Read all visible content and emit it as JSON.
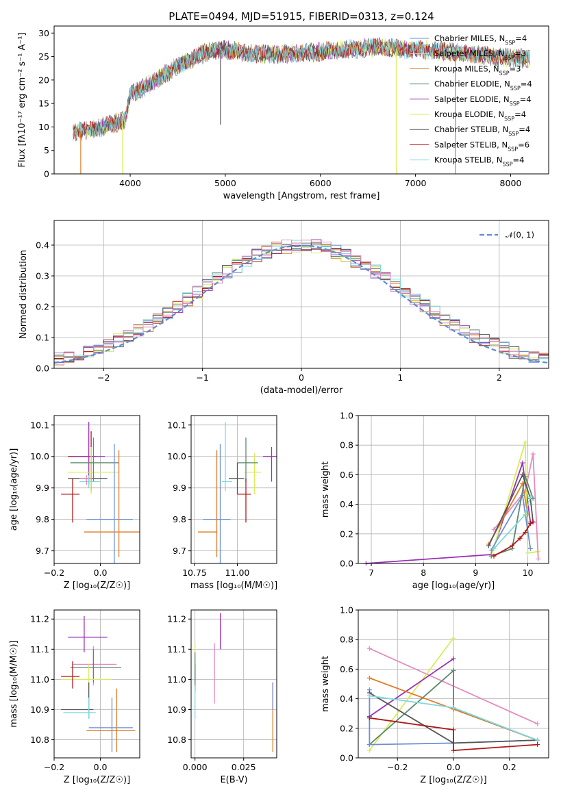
{
  "title": "PLATE=0494, MJD=51915, FIBERID=0313, z=0.124",
  "colors": {
    "chabrier_miles": "#6a8fd8",
    "salpeter_miles": "#e0e0e0",
    "kroupa_miles": "#e07b28",
    "chabrier_elodie": "#5a8a6a",
    "salpeter_elodie": "#9b30b5",
    "kroupa_elodie": "#d8ec5a",
    "chabrier_stelib": "#555555",
    "salpeter_stelib": "#b01818",
    "kroupa_stelib": "#7fd9e0",
    "pink": "#e58ac0",
    "normal": "#5b8ad9"
  },
  "chart_data": [
    {
      "type": "line",
      "name": "spectrum",
      "xlabel": "wavelength [Angstrom, rest frame]",
      "ylabel": "Flux [fλ10⁻¹⁷ erg cm⁻² s⁻¹ A⁻¹]",
      "xlim": [
        3200,
        8400
      ],
      "ylim": [
        0,
        31.5
      ],
      "xticks": [
        "4000",
        "5000",
        "6000",
        "7000",
        "8000"
      ],
      "yticks": [
        "0",
        "5",
        "10",
        "15",
        "20",
        "25",
        "30"
      ],
      "legend_position": "right",
      "legend": [
        "Chabrier MILES, N_SSP=4",
        "Salpeter MILES, N_SSP=3",
        "Kroupa MILES, N_SSP=3",
        "Chabrier ELODIE, N_SSP=4",
        "Salpeter ELODIE, N_SSP=4",
        "Kroupa ELODIE, N_SSP=4",
        "Chabrier STELIB, N_SSP=4",
        "Salpeter STELIB, N_SSP=6",
        "Kroupa STELIB, N_SSP=4"
      ],
      "continuum": {
        "x": [
          3400,
          3600,
          3800,
          3950,
          4000,
          4200,
          4500,
          4800,
          5000,
          5300,
          5600,
          6000,
          6300,
          6600,
          7000,
          7400,
          7800,
          8200
        ],
        "y": [
          9,
          9.5,
          10.5,
          11.5,
          17,
          19,
          23,
          26,
          26.5,
          25.5,
          25.5,
          26,
          26.5,
          27,
          26.5,
          26,
          25,
          24.5
        ]
      },
      "drops": [
        {
          "x": 3480,
          "color": "#e07b28"
        },
        {
          "x": 3920,
          "color": "#d8ec5a"
        },
        {
          "x": 6800,
          "color": "#d8ec5a"
        },
        {
          "x": 7420,
          "color": "#e07b28"
        },
        {
          "x": 4950,
          "color": "#555555",
          "to": 10.5
        }
      ]
    },
    {
      "type": "histogram",
      "name": "residuals",
      "xlabel": "(data-model)/error",
      "ylabel": "Normed distribution",
      "xlim": [
        -2.5,
        2.5
      ],
      "ylim": [
        0,
        0.48
      ],
      "xticks": [
        "−2",
        "−1",
        "0",
        "1",
        "2"
      ],
      "yticks": [
        "0.0",
        "0.1",
        "0.2",
        "0.3",
        "0.4"
      ],
      "legend": "𝒩(0, 1)",
      "legend_position": "top-right"
    },
    {
      "type": "errorbar",
      "name": "age_vs_Z",
      "xlabel": "Z [log₁₀(Z/Z☉)]",
      "ylabel": "age [log₁₀(age/yr)]",
      "xlim": [
        -0.2,
        0.17
      ],
      "ylim": [
        9.66,
        10.13
      ],
      "xticks": [
        "−0.2",
        "0.0"
      ],
      "yticks": [
        "9.7",
        "9.8",
        "9.9",
        "10.0",
        "10.1"
      ],
      "points": [
        {
          "x": -0.04,
          "xerr": [
            0.1,
            0.07
          ],
          "y": 9.93,
          "yerr": [
            0.04,
            0.05
          ],
          "color": "#555555"
        },
        {
          "x": -0.04,
          "xerr": [
            0.1,
            0.02
          ],
          "y": 10.0,
          "yerr": [
            0.08,
            0.08
          ],
          "color": "#b01818"
        },
        {
          "x": -0.05,
          "xerr": [
            0.07,
            0.07
          ],
          "y": 10.0,
          "yerr": [
            0.09,
            0.11
          ],
          "color": "#9b30b5"
        },
        {
          "x": -0.04,
          "xerr": [
            0.1,
            0.12
          ],
          "y": 9.95,
          "yerr": [
            0.07,
            0.08
          ],
          "color": "#d8ec5a"
        },
        {
          "x": -0.03,
          "xerr": [
            0.1,
            0.11
          ],
          "y": 9.98,
          "yerr": [
            0.06,
            0.08
          ],
          "color": "#5a8a6a"
        },
        {
          "x": -0.05,
          "xerr": [
            0.04,
            0.05
          ],
          "y": 9.92,
          "yerr": [
            0.02,
            0.02
          ],
          "color": "#7fd9e0"
        },
        {
          "x": -0.06,
          "xerr": [
            0.03,
            0.02
          ],
          "y": 9.93,
          "yerr": [
            0.02,
            0.01
          ],
          "color": "#e58ac0"
        },
        {
          "x": -0.12,
          "xerr": [
            0.05,
            0.03
          ],
          "y": 9.88,
          "yerr": [
            0.09,
            0.05
          ],
          "color": "#b01818"
        },
        {
          "x": 0.06,
          "xerr": [
            0.12,
            0.08
          ],
          "y": 9.8,
          "yerr": [
            0.14,
            0.24
          ],
          "color": "#6a8fd8"
        },
        {
          "x": 0.08,
          "xerr": [
            0.15,
            0.1
          ],
          "y": 9.76,
          "yerr": [
            0.08,
            0.26
          ],
          "color": "#e07b28"
        }
      ]
    },
    {
      "type": "errorbar",
      "name": "age_vs_mass",
      "xlabel": "mass [log₁₀(M/M☉)]",
      "ylabel": "",
      "xlim": [
        10.73,
        11.23
      ],
      "ylim": [
        9.66,
        10.13
      ],
      "xticks": [
        "10.75",
        "11.00"
      ],
      "yticks": [
        "9.7",
        "9.8",
        "9.9",
        "10.0",
        "10.1"
      ],
      "points": [
        {
          "x": 11.2,
          "xerr": [
            0.05,
            0.05
          ],
          "y": 10.0,
          "yerr": [
            0.08,
            0.03
          ],
          "color": "#9b30b5"
        },
        {
          "x": 11.1,
          "xerr": [
            0.06,
            0.04
          ],
          "y": 9.95,
          "yerr": [
            0.07,
            0.06
          ],
          "color": "#d8ec5a"
        },
        {
          "x": 11.05,
          "xerr": [
            0.05,
            0.07
          ],
          "y": 9.98,
          "yerr": [
            0.06,
            0.08
          ],
          "color": "#5a8a6a"
        },
        {
          "x": 11.0,
          "xerr": [
            0.05,
            0.04
          ],
          "y": 9.93,
          "yerr": [
            0.05,
            0.05
          ],
          "color": "#555555"
        },
        {
          "x": 10.93,
          "xerr": [
            0.02,
            0.04
          ],
          "y": 9.92,
          "yerr": [
            0.03,
            0.19
          ],
          "color": "#7fd9e0"
        },
        {
          "x": 11.05,
          "xerr": [
            0.05,
            0.03
          ],
          "y": 9.88,
          "yerr": [
            0.09,
            0.05
          ],
          "color": "#b01818"
        },
        {
          "x": 10.9,
          "xerr": [
            0.1,
            0.06
          ],
          "y": 9.8,
          "yerr": [
            0.14,
            0.24
          ],
          "color": "#6a8fd8"
        },
        {
          "x": 10.88,
          "xerr": [
            0.11,
            0.0
          ],
          "y": 9.76,
          "yerr": [
            0.08,
            0.26
          ],
          "color": "#e07b28"
        }
      ]
    },
    {
      "type": "line",
      "name": "mass_weight_vs_age",
      "xlabel": "age [log₁₀(age/yr)]",
      "ylabel": "mass weight",
      "xlim": [
        6.75,
        10.4
      ],
      "ylim": [
        0,
        1
      ],
      "xticks": [
        "7",
        "8",
        "9",
        "10"
      ],
      "yticks": [
        "0.0",
        "0.2",
        "0.4",
        "0.6",
        "0.8",
        "1.0"
      ],
      "series": [
        {
          "color": "#9b30b5",
          "x": [
            6.9,
            9.3,
            9.9,
            10.05
          ],
          "y": [
            0.0,
            0.06,
            0.68,
            0.28
          ]
        },
        {
          "color": "#d8ec5a",
          "x": [
            9.3,
            9.95,
            10.0,
            10.2
          ],
          "y": [
            0.05,
            0.82,
            0.07,
            0.08
          ]
        },
        {
          "color": "#e58ac0",
          "x": [
            9.35,
            9.95,
            10.1,
            10.2
          ],
          "y": [
            0.23,
            0.49,
            0.74,
            0.03
          ]
        },
        {
          "color": "#e07b28",
          "x": [
            9.25,
            9.9,
            10.0
          ],
          "y": [
            0.13,
            0.54,
            0.33
          ]
        },
        {
          "color": "#6a8fd8",
          "x": [
            9.3,
            9.9,
            10.05
          ],
          "y": [
            0.09,
            0.46,
            0.1
          ]
        },
        {
          "color": "#5a8a6a",
          "x": [
            9.3,
            9.7,
            9.95,
            10.1
          ],
          "y": [
            0.05,
            0.1,
            0.59,
            0.44
          ]
        },
        {
          "color": "#555555",
          "x": [
            9.25,
            9.9,
            10.05,
            10.1
          ],
          "y": [
            0.12,
            0.6,
            0.44,
            0.28
          ]
        },
        {
          "color": "#7fd9e0",
          "x": [
            9.35,
            9.95,
            10.05
          ],
          "y": [
            0.1,
            0.33,
            0.45
          ]
        },
        {
          "color": "#b01818",
          "x": [
            9.35,
            9.7,
            9.85,
            9.95,
            10.05,
            10.1
          ],
          "y": [
            0.05,
            0.12,
            0.17,
            0.21,
            0.27,
            0.28
          ]
        }
      ]
    },
    {
      "type": "errorbar",
      "name": "mass_vs_Z",
      "xlabel": "Z [log₁₀(Z/Z☉)]",
      "ylabel": "mass [log₁₀(M/M☉)]",
      "xlim": [
        -0.2,
        0.17
      ],
      "ylim": [
        10.74,
        11.23
      ],
      "xticks": [
        "−0.2",
        "0.0"
      ],
      "yticks": [
        "10.8",
        "10.9",
        "11.0",
        "11.1",
        "11.2"
      ],
      "points": [
        {
          "x": -0.07,
          "xerr": [
            0.07,
            0.1
          ],
          "y": 11.14,
          "yerr": [
            0.05,
            0.07
          ],
          "color": "#9b30b5"
        },
        {
          "x": -0.03,
          "xerr": [
            0.09,
            0.1
          ],
          "y": 11.05,
          "yerr": [
            0.07,
            0.06
          ],
          "color": "#e58ac0"
        },
        {
          "x": -0.03,
          "xerr": [
            0.1,
            0.12
          ],
          "y": 11.04,
          "yerr": [
            0.05,
            0.06
          ],
          "color": "#5a8a6a"
        },
        {
          "x": -0.05,
          "xerr": [
            0.12,
            0.1
          ],
          "y": 11.0,
          "yerr": [
            0.03,
            0.05
          ],
          "color": "#d8ec5a"
        },
        {
          "x": -0.12,
          "xerr": [
            0.05,
            0.03
          ],
          "y": 11.01,
          "yerr": [
            0.04,
            0.05
          ],
          "color": "#b01818"
        },
        {
          "x": -0.05,
          "xerr": [
            0.12,
            0.02
          ],
          "y": 10.9,
          "yerr": [
            0.03,
            0.09
          ],
          "color": "#555555"
        },
        {
          "x": -0.05,
          "xerr": [
            0.11,
            0.03
          ],
          "y": 10.89,
          "yerr": [
            0.02,
            0.05
          ],
          "color": "#7fd9e0"
        },
        {
          "x": 0.05,
          "xerr": [
            0.1,
            0.09
          ],
          "y": 10.84,
          "yerr": [
            0.08,
            0.1
          ],
          "color": "#6a8fd8"
        },
        {
          "x": 0.07,
          "xerr": [
            0.13,
            0.08
          ],
          "y": 10.83,
          "yerr": [
            0.07,
            0.14
          ],
          "color": "#e07b28"
        }
      ]
    },
    {
      "type": "errorbar",
      "name": "mass_vs_EBV",
      "xlabel": "E(B-V)",
      "ylabel": "",
      "xlim": [
        -0.002,
        0.042
      ],
      "ylim": [
        10.74,
        11.23
      ],
      "xticks": [
        "0.000",
        "0.025"
      ],
      "yticks": [
        "10.8",
        "10.9",
        "11.0",
        "11.1",
        "11.2"
      ],
      "points": [
        {
          "x": 0.0,
          "y": 11.05,
          "yerr": [
            0.05,
            0.07
          ],
          "color": "#d8ec5a"
        },
        {
          "x": 0.0,
          "y": 11.0,
          "yerr": [
            0.04,
            0.05
          ],
          "color": "#b01818"
        },
        {
          "x": 0.0,
          "y": 10.9,
          "yerr": [
            0.03,
            0.1
          ],
          "color": "#7fd9e0"
        },
        {
          "x": 0.0,
          "y": 11.03,
          "yerr": [
            0.05,
            0.06
          ],
          "color": "#5a8a6a"
        },
        {
          "x": 0.01,
          "y": 11.02,
          "yerr": [
            0.1,
            0.1
          ],
          "color": "#e58ac0"
        },
        {
          "x": 0.013,
          "y": 11.15,
          "yerr": [
            0.05,
            0.07
          ],
          "color": "#9b30b5"
        },
        {
          "x": 0.04,
          "y": 10.87,
          "yerr": [
            0.11,
            0.12
          ],
          "color": "#e07b28"
        },
        {
          "x": 0.04,
          "y": 10.9,
          "yerr": [
            0.0,
            0.09
          ],
          "color": "#6a8fd8"
        }
      ]
    },
    {
      "type": "line",
      "name": "mass_weight_vs_Z",
      "xlabel": "Z [log₁₀(Z/Z☉)]",
      "ylabel": "mass weight",
      "xlim": [
        -0.34,
        0.34
      ],
      "ylim": [
        0,
        1
      ],
      "xticks": [
        "−0.2",
        "0.0",
        "0.2"
      ],
      "yticks": [
        "0.0",
        "0.2",
        "0.4",
        "0.6",
        "0.8",
        "1.0"
      ],
      "series": [
        {
          "color": "#e58ac0",
          "x": [
            -0.3,
            0.3
          ],
          "y": [
            0.74,
            0.23
          ]
        },
        {
          "color": "#d8ec5a",
          "x": [
            -0.3,
            0.0,
            0.0
          ],
          "y": [
            0.05,
            0.81,
            0.1
          ]
        },
        {
          "color": "#9b30b5",
          "x": [
            -0.3,
            0.0
          ],
          "y": [
            0.28,
            0.67
          ]
        },
        {
          "color": "#5a8a6a",
          "x": [
            -0.3,
            0.0,
            0.0,
            0.3
          ],
          "y": [
            0.09,
            0.59,
            0.33,
            0.12
          ]
        },
        {
          "color": "#e07b28",
          "x": [
            -0.3,
            0.0,
            0.3
          ],
          "y": [
            0.54,
            0.33,
            0.12
          ]
        },
        {
          "color": "#6a8fd8",
          "x": [
            -0.3,
            -0.3,
            0.0,
            0.3
          ],
          "y": [
            0.46,
            0.09,
            0.1,
            0.12
          ]
        },
        {
          "color": "#555555",
          "x": [
            -0.3,
            0.0,
            0.3
          ],
          "y": [
            0.44,
            0.1,
            0.12
          ]
        },
        {
          "color": "#7fd9e0",
          "x": [
            -0.3,
            0.0,
            0.3
          ],
          "y": [
            0.42,
            0.34,
            0.12
          ]
        },
        {
          "color": "#b01818",
          "x": [
            -0.3,
            0.0,
            0.0,
            0.3
          ],
          "y": [
            0.27,
            0.19,
            0.05,
            0.09
          ]
        }
      ]
    }
  ]
}
